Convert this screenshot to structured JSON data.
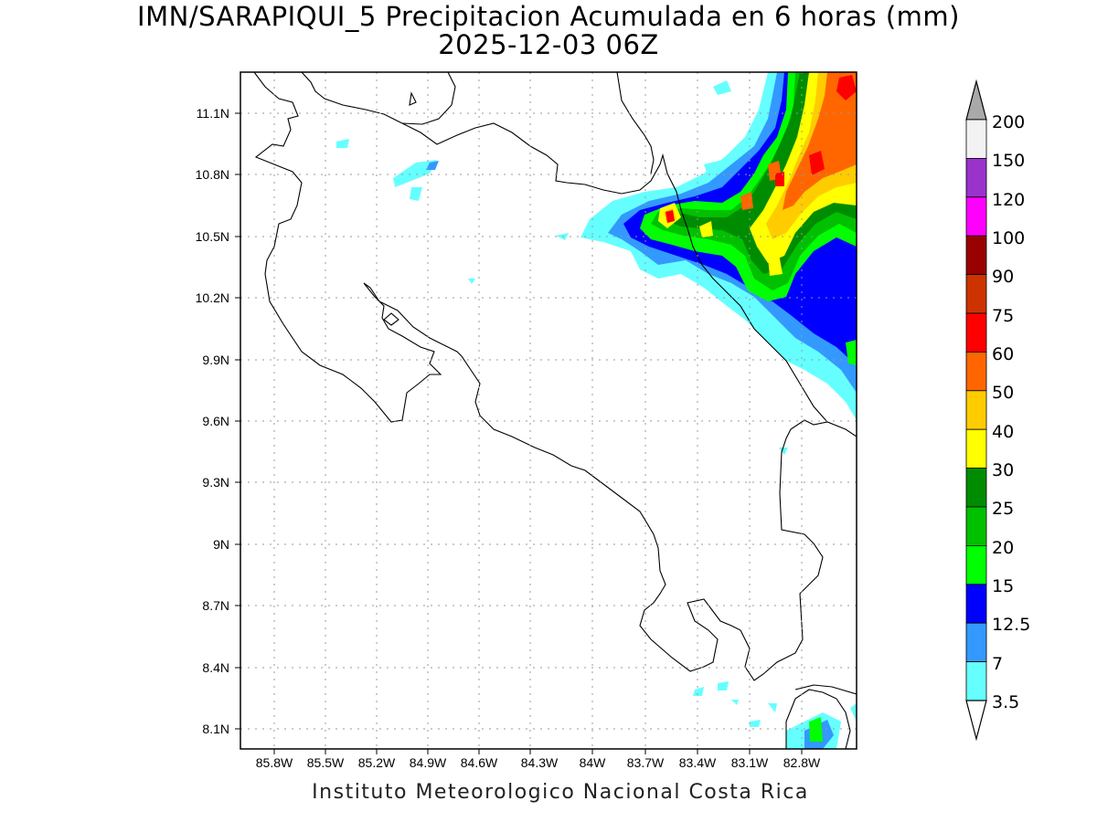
{
  "title": {
    "line1": "IMN/SARAPIQUI_5 Precipitacion Acumulada en 6 horas (mm)",
    "line2": "2025-12-03 06Z"
  },
  "footer": "Instituto Meteorologico Nacional Costa Rica",
  "map": {
    "lon_ticks": [
      "85.8W",
      "85.5W",
      "85.2W",
      "84.9W",
      "84.6W",
      "84.3W",
      "84W",
      "83.7W",
      "83.4W",
      "83.1W",
      "82.8W"
    ],
    "lat_ticks": [
      "11.1N",
      "10.8N",
      "10.5N",
      "10.2N",
      "9.9N",
      "9.6N",
      "9.3N",
      "9N",
      "8.7N",
      "8.4N",
      "8.1N"
    ],
    "grid": "dotted"
  },
  "colorbar": {
    "labels": [
      "200",
      "150",
      "120",
      "100",
      "90",
      "75",
      "60",
      "50",
      "40",
      "30",
      "25",
      "20",
      "15",
      "12.5",
      "7",
      "3.5"
    ],
    "colors": [
      "#a9a9a9",
      "#f2f2f2",
      "#9933cc",
      "#ff00ff",
      "#990000",
      "#cc3300",
      "#ff0000",
      "#ff6600",
      "#ffcc00",
      "#ffff00",
      "#008c00",
      "#00c000",
      "#00ff00",
      "#0000ff",
      "#3399ff",
      "#66ffff",
      "#ffffff"
    ]
  }
}
